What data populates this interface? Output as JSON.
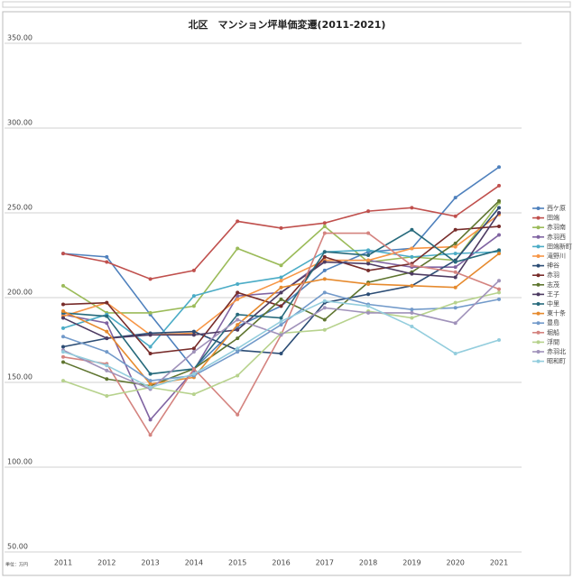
{
  "chart_data": {
    "type": "line",
    "title": "北区　マンション坪単価変遷(2011-2021)",
    "unit_note": "単位：万円",
    "categories": [
      "2011",
      "2012",
      "2013",
      "2014",
      "2015",
      "2016",
      "2017",
      "2018",
      "2019",
      "2020",
      "2021"
    ],
    "ylim": [
      50,
      350
    ],
    "yticks": [
      {
        "value": 50,
        "label": "50.00"
      },
      {
        "value": 100,
        "label": "100.00"
      },
      {
        "value": 150,
        "label": "150.00"
      },
      {
        "value": 200,
        "label": "200.00"
      },
      {
        "value": 250,
        "label": "250.00"
      },
      {
        "value": 300,
        "label": "300.00"
      },
      {
        "value": 350,
        "label": "350.00"
      }
    ],
    "grid": true,
    "legend": "right",
    "series": [
      {
        "name": "西ケ原",
        "color": "#4f81bd",
        "values": [
          226,
          224,
          190,
          158,
          183,
          195,
          216,
          227,
          229,
          259,
          277
        ]
      },
      {
        "name": "田端",
        "color": "#c0504d",
        "values": [
          226,
          221,
          211,
          216,
          245,
          241,
          244,
          251,
          253,
          248,
          266
        ]
      },
      {
        "name": "赤羽南",
        "color": "#9bbb59",
        "values": [
          207,
          191,
          191,
          195,
          229,
          219,
          242,
          221,
          224,
          222,
          256
        ]
      },
      {
        "name": "赤羽西",
        "color": "#8064a2",
        "values": [
          190,
          185,
          128,
          157,
          201,
          203,
          222,
          222,
          218,
          218,
          237
        ]
      },
      {
        "name": "田端新町",
        "color": "#4bacc6",
        "values": [
          182,
          190,
          171,
          201,
          208,
          212,
          227,
          228,
          224,
          226,
          227
        ]
      },
      {
        "name": "滝野川",
        "color": "#f79646",
        "values": [
          189,
          197,
          178,
          179,
          199,
          210,
          222,
          222,
          229,
          230,
          249
        ]
      },
      {
        "name": "神谷",
        "color": "#2c4d75",
        "values": [
          171,
          176,
          179,
          180,
          169,
          167,
          197,
          202,
          207,
          222,
          253
        ]
      },
      {
        "name": "赤羽",
        "color": "#772c2a",
        "values": [
          196,
          197,
          167,
          170,
          203,
          195,
          224,
          216,
          220,
          240,
          242
        ]
      },
      {
        "name": "志茂",
        "color": "#5f7530",
        "values": [
          162,
          152,
          148,
          158,
          176,
          199,
          187,
          209,
          215,
          232,
          257
        ]
      },
      {
        "name": "王子",
        "color": "#4d3b62",
        "values": [
          188,
          176,
          178,
          178,
          181,
          203,
          221,
          220,
          214,
          212,
          250
        ]
      },
      {
        "name": "中里",
        "color": "#276a7c",
        "values": [
          191,
          189,
          155,
          158,
          190,
          188,
          227,
          225,
          240,
          221,
          228
        ]
      },
      {
        "name": "東十条",
        "color": "#e68a2e",
        "values": [
          192,
          180,
          149,
          153,
          184,
          206,
          211,
          208,
          207,
          206,
          226
        ]
      },
      {
        "name": "豊島",
        "color": "#729aca",
        "values": [
          177,
          168,
          151,
          154,
          168,
          184,
          203,
          196,
          193,
          194,
          199
        ]
      },
      {
        "name": "堀船",
        "color": "#d4837f",
        "values": [
          165,
          161,
          119,
          158,
          131,
          178,
          238,
          238,
          219,
          215,
          205
        ]
      },
      {
        "name": "浮間",
        "color": "#b7d28d",
        "values": [
          151,
          142,
          147,
          143,
          154,
          179,
          181,
          192,
          188,
          197,
          203
        ]
      },
      {
        "name": "赤羽北",
        "color": "#a092ba",
        "values": [
          169,
          157,
          146,
          168,
          187,
          178,
          194,
          191,
          191,
          185,
          210
        ]
      },
      {
        "name": "昭和町",
        "color": "#93cddd",
        "values": [
          168,
          160,
          147,
          155,
          170,
          186,
          198,
          195,
          183,
          167,
          175
        ]
      }
    ]
  }
}
